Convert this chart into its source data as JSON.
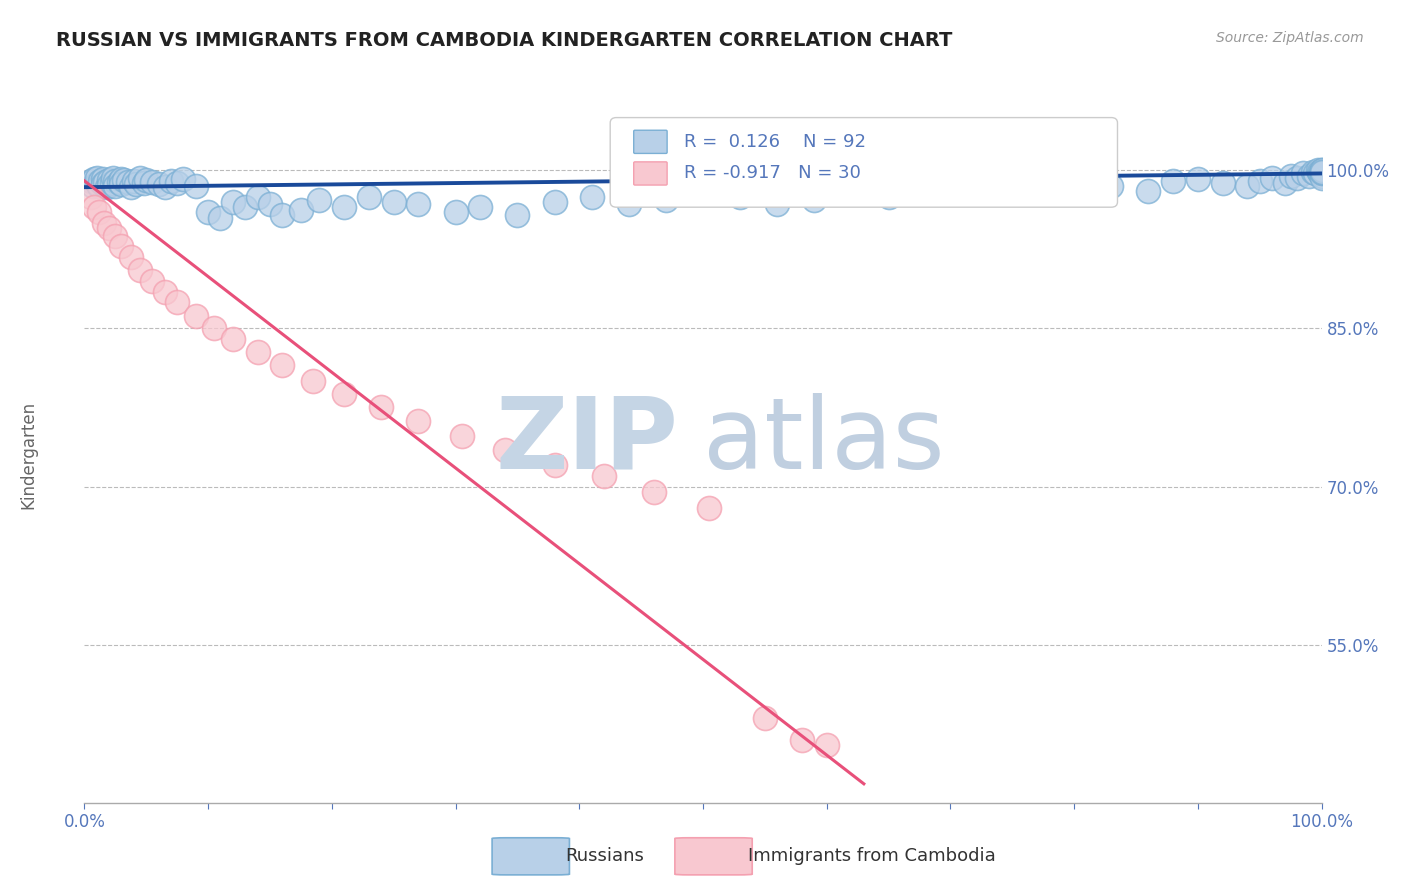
{
  "title": "RUSSIAN VS IMMIGRANTS FROM CAMBODIA KINDERGARTEN CORRELATION CHART",
  "source": "Source: ZipAtlas.com",
  "ylabel": "Kindergarten",
  "y_ticks": [
    0.55,
    0.7,
    0.85,
    1.0
  ],
  "y_tick_labels": [
    "55.0%",
    "70.0%",
    "85.0%",
    "100.0%"
  ],
  "xlim": [
    0.0,
    1.0
  ],
  "ylim": [
    0.4,
    1.06
  ],
  "russian_R": 0.126,
  "russian_N": 92,
  "cambodia_R": -0.917,
  "cambodia_N": 30,
  "russian_color": "#7bafd4",
  "cambodia_color": "#f4a0b0",
  "russian_fill_color": "#b8d0e8",
  "cambodia_fill_color": "#f8c8d0",
  "russian_line_color": "#1a4a9a",
  "cambodia_line_color": "#e8507a",
  "background_color": "#ffffff",
  "grid_color": "#bbbbbb",
  "title_color": "#222222",
  "axis_color": "#5577bb",
  "watermark_zip_color": "#c5d5e5",
  "watermark_atlas_color": "#c0cfe0",
  "russian_scatter_x": [
    0.005,
    0.007,
    0.008,
    0.01,
    0.01,
    0.012,
    0.013,
    0.015,
    0.015,
    0.017,
    0.018,
    0.02,
    0.02,
    0.022,
    0.023,
    0.025,
    0.025,
    0.028,
    0.03,
    0.03,
    0.032,
    0.035,
    0.038,
    0.04,
    0.042,
    0.045,
    0.048,
    0.05,
    0.055,
    0.06,
    0.065,
    0.07,
    0.075,
    0.08,
    0.09,
    0.1,
    0.11,
    0.12,
    0.13,
    0.14,
    0.15,
    0.16,
    0.175,
    0.19,
    0.21,
    0.23,
    0.25,
    0.27,
    0.3,
    0.32,
    0.35,
    0.38,
    0.41,
    0.44,
    0.47,
    0.5,
    0.53,
    0.56,
    0.59,
    0.62,
    0.65,
    0.68,
    0.71,
    0.74,
    0.77,
    0.8,
    0.83,
    0.86,
    0.88,
    0.9,
    0.92,
    0.94,
    0.95,
    0.96,
    0.97,
    0.975,
    0.98,
    0.985,
    0.99,
    0.993,
    0.995,
    0.997,
    0.998,
    0.999,
    1.0,
    1.0,
    1.0,
    1.0,
    1.0,
    1.0,
    1.0,
    1.0
  ],
  "russian_scatter_y": [
    0.99,
    0.985,
    0.992,
    0.988,
    0.993,
    0.985,
    0.99,
    0.992,
    0.987,
    0.989,
    0.984,
    0.991,
    0.986,
    0.988,
    0.993,
    0.99,
    0.985,
    0.989,
    0.992,
    0.987,
    0.991,
    0.989,
    0.984,
    0.99,
    0.987,
    0.993,
    0.988,
    0.991,
    0.989,
    0.987,
    0.984,
    0.99,
    0.988,
    0.992,
    0.985,
    0.96,
    0.955,
    0.97,
    0.965,
    0.975,
    0.968,
    0.958,
    0.962,
    0.972,
    0.965,
    0.975,
    0.97,
    0.968,
    0.96,
    0.965,
    0.958,
    0.97,
    0.975,
    0.968,
    0.972,
    0.98,
    0.975,
    0.968,
    0.972,
    0.978,
    0.975,
    0.98,
    0.985,
    0.982,
    0.978,
    0.988,
    0.985,
    0.98,
    0.99,
    0.992,
    0.988,
    0.985,
    0.99,
    0.993,
    0.988,
    0.995,
    0.993,
    0.997,
    0.995,
    0.998,
    0.997,
    1.0,
    0.998,
    0.997,
    1.0,
    0.998,
    0.995,
    0.993,
    0.998,
    0.997,
    1.0,
    0.998
  ],
  "cambodia_scatter_x": [
    0.005,
    0.008,
    0.012,
    0.016,
    0.02,
    0.025,
    0.03,
    0.038,
    0.045,
    0.055,
    0.065,
    0.075,
    0.09,
    0.105,
    0.12,
    0.14,
    0.16,
    0.185,
    0.21,
    0.24,
    0.27,
    0.305,
    0.34,
    0.38,
    0.42,
    0.46,
    0.505,
    0.55,
    0.58,
    0.6
  ],
  "cambodia_scatter_y": [
    0.975,
    0.965,
    0.96,
    0.95,
    0.945,
    0.938,
    0.928,
    0.918,
    0.905,
    0.895,
    0.885,
    0.875,
    0.862,
    0.85,
    0.84,
    0.828,
    0.815,
    0.8,
    0.788,
    0.775,
    0.762,
    0.748,
    0.735,
    0.72,
    0.71,
    0.695,
    0.68,
    0.48,
    0.46,
    0.455
  ],
  "russian_trend_x": [
    0.0,
    1.0
  ],
  "russian_trend_y": [
    0.984,
    0.997
  ],
  "cambodia_trend_x": [
    0.0,
    0.63
  ],
  "cambodia_trend_y": [
    0.99,
    0.418
  ]
}
